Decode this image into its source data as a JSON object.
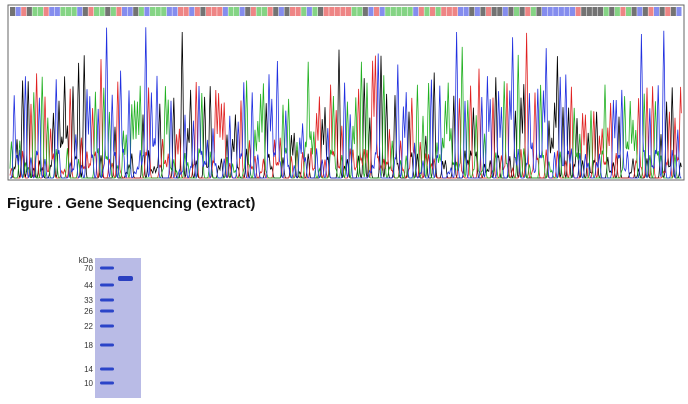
{
  "caption": "Figure . Gene Sequencing (extract)",
  "gel": {
    "unit": "kDa",
    "markers": [
      "70",
      "44",
      "33",
      "26",
      "22",
      "18",
      "14",
      "10"
    ]
  }
}
